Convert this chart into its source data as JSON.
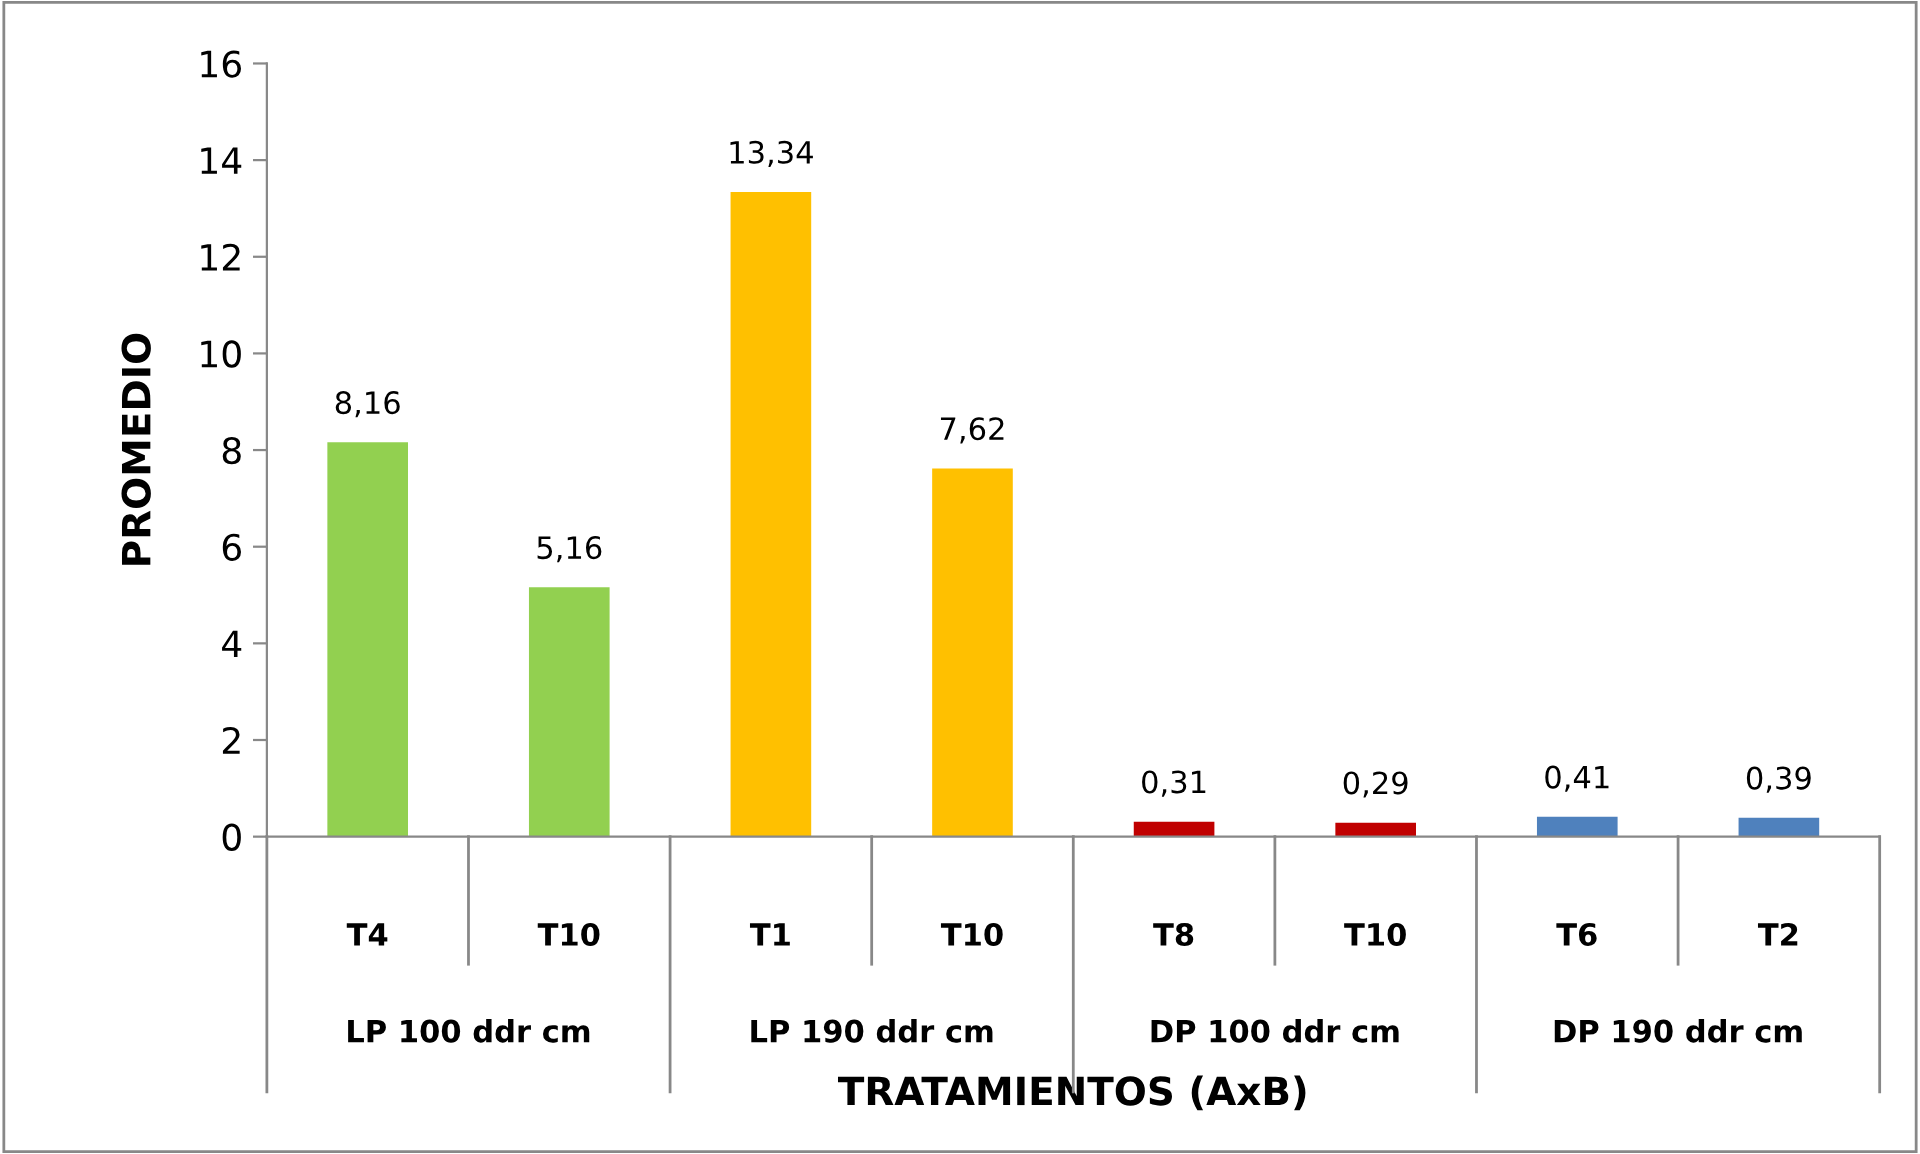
{
  "chart_data": {
    "type": "bar",
    "xlabel": "TRATAMIENTOS (AxB)",
    "ylabel": "PROMEDIO",
    "categories": [
      "T4",
      "T10",
      "T1",
      "T10",
      "T8",
      "T10",
      "T6",
      "T2"
    ],
    "values": [
      8.16,
      5.16,
      13.34,
      7.62,
      0.31,
      0.29,
      0.41,
      0.39
    ],
    "colors": [
      "#92d050",
      "#92d050",
      "#ffc000",
      "#ffc000",
      "#c00000",
      "#c00000",
      "#4f81bd",
      "#4f81bd"
    ],
    "value_labels": [
      "8,16",
      "5,16",
      "13,34",
      "7,62",
      "0,31",
      "0,29",
      "0,41",
      "0,39"
    ],
    "annotations": [
      "LP 100 ddr cm",
      "LP 190 ddr cm",
      "DP 100 ddr cm",
      "DP 190 ddr cm"
    ],
    "ylim": [
      0,
      16
    ],
    "yticks": [
      0,
      2,
      4,
      6,
      8,
      10,
      12,
      14,
      16
    ],
    "grid": false,
    "legend": false
  }
}
